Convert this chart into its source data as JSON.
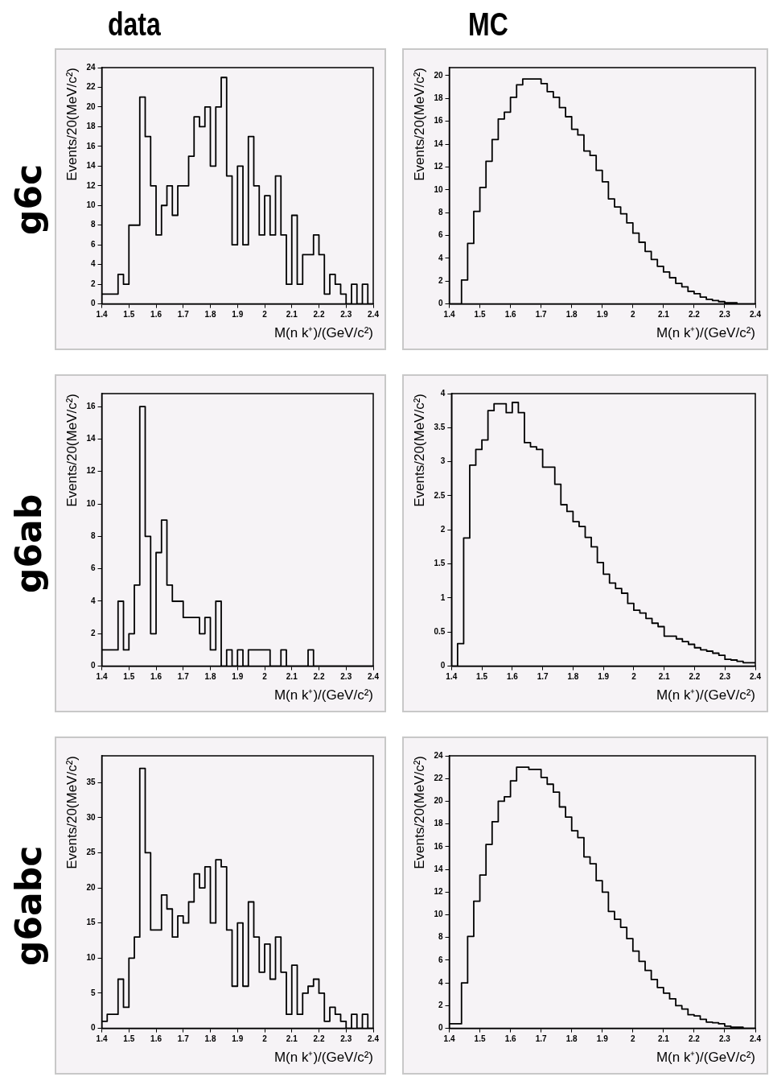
{
  "chart_data": [
    {
      "type": "histogram",
      "title": "data",
      "annotations": [
        "g6c"
      ],
      "xlabel": "M(n k⁺)/(GeV/c²)",
      "ylabel": "Events/20(MeV/c²)",
      "color": "#000000",
      "bins": [
        1.4,
        1.42,
        1.44,
        1.46,
        1.48,
        1.5,
        1.52,
        1.54,
        1.56,
        1.58,
        1.6,
        1.62,
        1.64,
        1.66,
        1.68,
        1.7,
        1.72,
        1.74,
        1.76,
        1.78,
        1.8,
        1.82,
        1.84,
        1.86,
        1.88,
        1.9,
        1.92,
        1.94,
        1.96,
        1.98,
        2.0,
        2.02,
        2.04,
        2.06,
        2.08,
        2.1,
        2.12,
        2.14,
        2.16,
        2.18,
        2.2,
        2.22,
        2.24,
        2.26,
        2.28,
        2.3,
        2.32,
        2.34,
        2.36,
        2.38,
        2.4
      ],
      "values": [
        1,
        1,
        1,
        3,
        2,
        8,
        8,
        21,
        17,
        12,
        7,
        10,
        12,
        9,
        12,
        12,
        15,
        19,
        18,
        20,
        14,
        20,
        23,
        13,
        6,
        14,
        6,
        17,
        12,
        7,
        11,
        7,
        13,
        7,
        2,
        9,
        2,
        5,
        5,
        7,
        5,
        1,
        3,
        2,
        1,
        0,
        2,
        0,
        2,
        0
      ],
      "xlim": [
        1.4,
        2.4
      ],
      "xticks": [
        1.4,
        1.5,
        1.6,
        1.7,
        1.8,
        1.9,
        2,
        2.1,
        2.2,
        2.3,
        2.4
      ],
      "ylim": [
        0,
        24
      ],
      "yticks": [
        0,
        2,
        4,
        6,
        8,
        10,
        12,
        14,
        16,
        18,
        20,
        22,
        24
      ]
    },
    {
      "type": "histogram",
      "title": "MC",
      "xlabel": "M(n k⁺)/(GeV/c²)",
      "ylabel": "Events/20(MeV/c²)",
      "color": "#000000",
      "bins": [
        1.4,
        1.42,
        1.44,
        1.46,
        1.48,
        1.5,
        1.52,
        1.54,
        1.56,
        1.58,
        1.6,
        1.62,
        1.64,
        1.66,
        1.68,
        1.7,
        1.72,
        1.74,
        1.76,
        1.78,
        1.8,
        1.82,
        1.84,
        1.86,
        1.88,
        1.9,
        1.92,
        1.94,
        1.96,
        1.98,
        2.0,
        2.02,
        2.04,
        2.06,
        2.08,
        2.1,
        2.12,
        2.14,
        2.16,
        2.18,
        2.2,
        2.22,
        2.24,
        2.26,
        2.28,
        2.3,
        2.32,
        2.34,
        2.36,
        2.38,
        2.4
      ],
      "values": [
        0,
        0,
        2.1,
        5.3,
        8.1,
        10.2,
        12.5,
        14.4,
        16.2,
        16.8,
        18.1,
        19.2,
        19.7,
        19.7,
        19.7,
        19.3,
        18.6,
        18.1,
        17.2,
        16.4,
        15.3,
        14.8,
        13.4,
        13.0,
        11.7,
        10.7,
        9.2,
        8.5,
        7.9,
        7.1,
        6.2,
        5.4,
        4.6,
        3.9,
        3.3,
        2.8,
        2.3,
        1.8,
        1.5,
        1.1,
        0.9,
        0.6,
        0.4,
        0.3,
        0.2,
        0.1,
        0.1,
        0,
        0,
        0
      ],
      "xlim": [
        1.4,
        2.4
      ],
      "xticks": [
        1.4,
        1.5,
        1.6,
        1.7,
        1.8,
        1.9,
        2,
        2.1,
        2.2,
        2.3,
        2.4
      ],
      "ylim": [
        0,
        20.7
      ],
      "yticks": [
        0,
        2,
        4,
        6,
        8,
        10,
        12,
        14,
        16,
        18,
        20
      ]
    },
    {
      "type": "histogram",
      "annotations": [
        "g6ab"
      ],
      "xlabel": "M(n k⁺)/(GeV/c²)",
      "ylabel": "Events/20(MeV/c²)",
      "color": "#000000",
      "bins": [
        1.4,
        1.42,
        1.44,
        1.46,
        1.48,
        1.5,
        1.52,
        1.54,
        1.56,
        1.58,
        1.6,
        1.62,
        1.64,
        1.66,
        1.68,
        1.7,
        1.72,
        1.74,
        1.76,
        1.78,
        1.8,
        1.82,
        1.84,
        1.86,
        1.88,
        1.9,
        1.92,
        1.94,
        1.96,
        1.98,
        2.0,
        2.02,
        2.04,
        2.06,
        2.08,
        2.1,
        2.12,
        2.14,
        2.16,
        2.18,
        2.2,
        2.22,
        2.24,
        2.26,
        2.28,
        2.3,
        2.32,
        2.34,
        2.36,
        2.38,
        2.4
      ],
      "values": [
        1,
        1,
        1,
        4,
        1,
        2,
        5,
        16,
        8,
        2,
        7,
        9,
        5,
        4,
        4,
        3,
        3,
        3,
        2,
        3,
        1,
        4,
        0,
        1,
        0,
        1,
        0,
        1,
        1,
        1,
        1,
        0,
        0,
        1,
        0,
        0,
        0,
        0,
        1,
        0,
        0,
        0,
        0,
        0,
        0,
        0,
        0,
        0,
        0,
        0
      ],
      "xlim": [
        1.4,
        2.4
      ],
      "xticks": [
        1.4,
        1.5,
        1.6,
        1.7,
        1.8,
        1.9,
        2,
        2.1,
        2.2,
        2.3,
        2.4
      ],
      "ylim": [
        0,
        16.8
      ],
      "yticks": [
        0,
        2,
        4,
        6,
        8,
        10,
        12,
        14,
        16
      ]
    },
    {
      "type": "histogram",
      "xlabel": "M(n k⁺)/(GeV/c²)",
      "ylabel": "Events/20(MeV/c²)",
      "color": "#000000",
      "bins": [
        1.4,
        1.42,
        1.44,
        1.46,
        1.48,
        1.5,
        1.52,
        1.54,
        1.56,
        1.58,
        1.6,
        1.62,
        1.64,
        1.66,
        1.68,
        1.7,
        1.72,
        1.74,
        1.76,
        1.78,
        1.8,
        1.82,
        1.84,
        1.86,
        1.88,
        1.9,
        1.92,
        1.94,
        1.96,
        1.98,
        2.0,
        2.02,
        2.04,
        2.06,
        2.08,
        2.1,
        2.12,
        2.14,
        2.16,
        2.18,
        2.2,
        2.22,
        2.24,
        2.26,
        2.28,
        2.3,
        2.32,
        2.34,
        2.36,
        2.38,
        2.4
      ],
      "values": [
        0,
        0.33,
        1.88,
        2.95,
        3.18,
        3.32,
        3.75,
        3.85,
        3.85,
        3.72,
        3.87,
        3.72,
        3.28,
        3.22,
        3.18,
        2.92,
        2.92,
        2.67,
        2.37,
        2.27,
        2.12,
        2.05,
        1.89,
        1.75,
        1.52,
        1.35,
        1.22,
        1.14,
        1.07,
        0.92,
        0.82,
        0.78,
        0.7,
        0.63,
        0.58,
        0.44,
        0.44,
        0.4,
        0.36,
        0.32,
        0.27,
        0.24,
        0.22,
        0.19,
        0.16,
        0.1,
        0.09,
        0.07,
        0.05,
        0.05
      ],
      "xlim": [
        1.4,
        2.4
      ],
      "xticks": [
        1.4,
        1.5,
        1.6,
        1.7,
        1.8,
        1.9,
        2,
        2.1,
        2.2,
        2.3,
        2.4
      ],
      "ylim": [
        0,
        4
      ],
      "yticks": [
        0,
        0.5,
        1,
        1.5,
        2,
        2.5,
        3,
        3.5,
        4
      ]
    },
    {
      "type": "histogram",
      "annotations": [
        "g6abc"
      ],
      "xlabel": "M(n k⁺)/(GeV/c²)",
      "ylabel": "Events/20(MeV/c²)",
      "color": "#000000",
      "bins": [
        1.4,
        1.42,
        1.44,
        1.46,
        1.48,
        1.5,
        1.52,
        1.54,
        1.56,
        1.58,
        1.6,
        1.62,
        1.64,
        1.66,
        1.68,
        1.7,
        1.72,
        1.74,
        1.76,
        1.78,
        1.8,
        1.82,
        1.84,
        1.86,
        1.88,
        1.9,
        1.92,
        1.94,
        1.96,
        1.98,
        2.0,
        2.02,
        2.04,
        2.06,
        2.08,
        2.1,
        2.12,
        2.14,
        2.16,
        2.18,
        2.2,
        2.22,
        2.24,
        2.26,
        2.28,
        2.3,
        2.32,
        2.34,
        2.36,
        2.38,
        2.4
      ],
      "values": [
        1,
        2,
        2,
        7,
        3,
        10,
        13,
        37,
        25,
        14,
        14,
        19,
        17,
        13,
        16,
        15,
        18,
        22,
        20,
        23,
        15,
        24,
        23,
        14,
        6,
        15,
        6,
        18,
        13,
        8,
        12,
        7,
        13,
        8,
        2,
        9,
        2,
        5,
        6,
        7,
        5,
        1,
        3,
        2,
        1,
        0,
        2,
        0,
        2,
        0
      ],
      "xlim": [
        1.4,
        2.4
      ],
      "xticks": [
        1.4,
        1.5,
        1.6,
        1.7,
        1.8,
        1.9,
        2,
        2.1,
        2.2,
        2.3,
        2.4
      ],
      "ylim": [
        0,
        38.8
      ],
      "yticks": [
        0,
        5,
        10,
        15,
        20,
        25,
        30,
        35
      ]
    },
    {
      "type": "histogram",
      "xlabel": "M(n k⁺)/(GeV/c²)",
      "ylabel": "Events/20(MeV/c²)",
      "color": "#000000",
      "bins": [
        1.4,
        1.42,
        1.44,
        1.46,
        1.48,
        1.5,
        1.52,
        1.54,
        1.56,
        1.58,
        1.6,
        1.62,
        1.64,
        1.66,
        1.68,
        1.7,
        1.72,
        1.74,
        1.76,
        1.78,
        1.8,
        1.82,
        1.84,
        1.86,
        1.88,
        1.9,
        1.92,
        1.94,
        1.96,
        1.98,
        2.0,
        2.02,
        2.04,
        2.06,
        2.08,
        2.1,
        2.12,
        2.14,
        2.16,
        2.18,
        2.2,
        2.22,
        2.24,
        2.26,
        2.28,
        2.3,
        2.32,
        2.34,
        2.36,
        2.38,
        2.4
      ],
      "values": [
        0.4,
        0.4,
        4.0,
        8.1,
        11.2,
        13.5,
        16.2,
        18.2,
        20.0,
        20.4,
        21.8,
        23.0,
        23.0,
        22.8,
        22.8,
        22.1,
        21.5,
        20.8,
        19.5,
        18.6,
        17.4,
        16.8,
        15.1,
        14.5,
        13.0,
        12.0,
        10.3,
        9.6,
        8.9,
        7.9,
        6.8,
        5.9,
        5.1,
        4.3,
        3.6,
        3.1,
        2.6,
        2.0,
        1.7,
        1.2,
        1.1,
        0.8,
        0.55,
        0.5,
        0.4,
        0.2,
        0.1,
        0.1,
        0,
        0
      ],
      "xlim": [
        1.4,
        2.4
      ],
      "xticks": [
        1.4,
        1.5,
        1.6,
        1.7,
        1.8,
        1.9,
        2,
        2.1,
        2.2,
        2.3,
        2.4
      ],
      "ylim": [
        0,
        24
      ],
      "yticks": [
        0,
        2,
        4,
        6,
        8,
        10,
        12,
        14,
        16,
        18,
        20,
        22,
        24
      ]
    }
  ]
}
